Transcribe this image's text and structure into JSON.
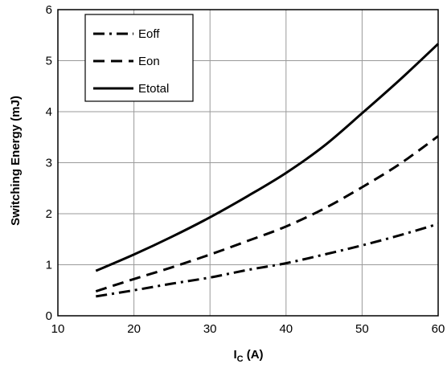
{
  "chart_data": {
    "type": "line",
    "xlabel_main": "I",
    "xlabel_sub": "C",
    "xlabel_unit": " (A)",
    "ylabel": "Switching Energy (mJ)",
    "xlim": [
      10,
      60
    ],
    "ylim": [
      0,
      6
    ],
    "xticks": [
      "10",
      "20",
      "30",
      "40",
      "50",
      "60"
    ],
    "yticks": [
      "0",
      "1",
      "2",
      "3",
      "4",
      "5",
      "6"
    ],
    "grid": true,
    "legend_position": "top-left",
    "series": [
      {
        "name": "Eoff",
        "style": "dash-dot",
        "x": [
          15,
          20,
          25,
          30,
          35,
          40,
          45,
          50,
          55,
          60
        ],
        "values": [
          0.38,
          0.5,
          0.63,
          0.75,
          0.9,
          1.03,
          1.2,
          1.38,
          1.58,
          1.8
        ]
      },
      {
        "name": "Eon",
        "style": "dashed",
        "x": [
          15,
          20,
          25,
          30,
          35,
          40,
          45,
          50,
          55,
          60
        ],
        "values": [
          0.48,
          0.72,
          0.95,
          1.2,
          1.47,
          1.75,
          2.1,
          2.52,
          2.98,
          3.52
        ]
      },
      {
        "name": "Etotal",
        "style": "solid",
        "x": [
          15,
          20,
          25,
          30,
          35,
          40,
          45,
          50,
          55,
          60
        ],
        "values": [
          0.88,
          1.2,
          1.55,
          1.93,
          2.35,
          2.8,
          3.33,
          3.97,
          4.63,
          5.33
        ]
      }
    ]
  }
}
